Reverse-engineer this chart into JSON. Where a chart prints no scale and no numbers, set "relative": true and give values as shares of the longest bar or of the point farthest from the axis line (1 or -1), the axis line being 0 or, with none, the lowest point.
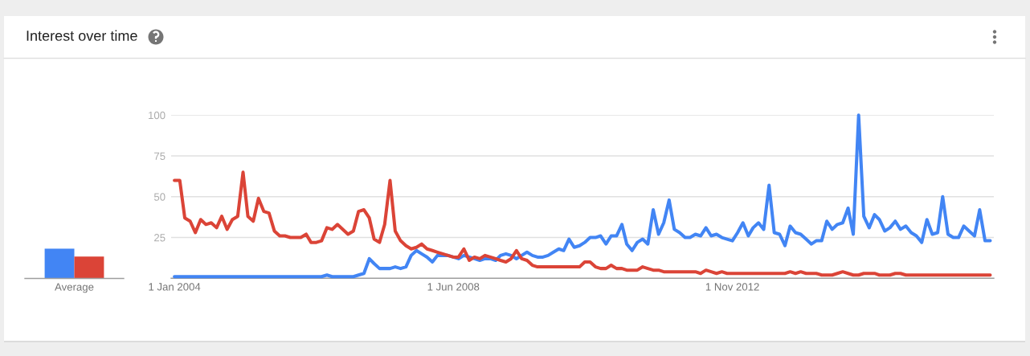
{
  "chart_data": [
    {
      "type": "bar",
      "title": "Interest over time",
      "categories": [
        "Average"
      ],
      "relative": true,
      "tick_labels": "x",
      "series": [
        {
          "color": "#4285f4",
          "values": [
            1
          ]
        },
        {
          "color": "#db4437",
          "values": [
            0.73
          ]
        }
      ]
    },
    {
      "type": "line",
      "x": [
        "2004-01",
        "2004-02",
        "2004-03",
        "2004-04",
        "2004-05",
        "2004-06",
        "2004-07",
        "2004-08",
        "2004-09",
        "2004-10",
        "2004-11",
        "2004-12",
        "2005-01",
        "2005-02",
        "2005-03",
        "2005-04",
        "2005-05",
        "2005-06",
        "2005-07",
        "2005-08",
        "2005-09",
        "2005-10",
        "2005-11",
        "2005-12",
        "2006-01",
        "2006-02",
        "2006-03",
        "2006-04",
        "2006-05",
        "2006-06",
        "2006-07",
        "2006-08",
        "2006-09",
        "2006-10",
        "2006-11",
        "2006-12",
        "2007-01",
        "2007-02",
        "2007-03",
        "2007-04",
        "2007-05",
        "2007-06",
        "2007-07",
        "2007-08",
        "2007-09",
        "2007-10",
        "2007-11",
        "2007-12",
        "2008-01",
        "2008-02",
        "2008-03",
        "2008-04",
        "2008-05",
        "2008-06",
        "2008-07",
        "2008-08",
        "2008-09",
        "2008-10",
        "2008-11",
        "2008-12",
        "2009-01",
        "2009-02",
        "2009-03",
        "2009-04",
        "2009-05",
        "2009-06",
        "2009-07",
        "2009-08",
        "2009-09",
        "2009-10",
        "2009-11",
        "2009-12",
        "2010-01",
        "2010-02",
        "2010-03",
        "2010-04",
        "2010-05",
        "2010-06",
        "2010-07",
        "2010-08",
        "2010-09",
        "2010-10",
        "2010-11",
        "2010-12",
        "2011-01",
        "2011-02",
        "2011-03",
        "2011-04",
        "2011-05",
        "2011-06",
        "2011-07",
        "2011-08",
        "2011-09",
        "2011-10",
        "2011-11",
        "2011-12",
        "2012-01",
        "2012-02",
        "2012-03",
        "2012-04",
        "2012-05",
        "2012-06",
        "2012-07",
        "2012-08",
        "2012-09",
        "2012-10",
        "2012-11",
        "2012-12",
        "2013-01",
        "2013-02",
        "2013-03",
        "2013-04",
        "2013-05",
        "2013-06",
        "2013-07",
        "2013-08",
        "2013-09",
        "2013-10",
        "2013-11",
        "2013-12",
        "2014-01",
        "2014-02",
        "2014-03",
        "2014-04",
        "2014-05",
        "2014-06",
        "2014-07",
        "2014-08",
        "2014-09",
        "2014-10",
        "2014-11",
        "2014-12",
        "2015-01",
        "2015-02",
        "2015-03",
        "2015-04",
        "2015-05",
        "2015-06",
        "2015-07",
        "2015-08",
        "2015-09",
        "2015-10",
        "2015-11",
        "2015-12",
        "2016-01",
        "2016-02",
        "2016-03",
        "2016-04",
        "2016-05",
        "2016-06",
        "2016-07",
        "2016-08",
        "2016-09",
        "2016-10",
        "2016-11",
        "2016-12"
      ],
      "xlim": [
        "2003-12-13",
        "2016-12-22"
      ],
      "xticks": [
        {
          "value": "2004-01-01",
          "label": "1 Jan 2004"
        },
        {
          "value": "2008-06-01",
          "label": "1 Jun 2008"
        },
        {
          "value": "2012-11-01",
          "label": "1 Nov 2012"
        }
      ],
      "ylim": [
        0,
        100
      ],
      "yticks": [
        25,
        50,
        75,
        100
      ],
      "grid": "y",
      "series": [
        {
          "color": "#4285f4",
          "values": [
            1,
            1,
            1,
            1,
            1,
            1,
            1,
            1,
            1,
            1,
            1,
            1,
            1,
            1,
            1,
            1,
            1,
            1,
            1,
            1,
            1,
            1,
            1,
            1,
            1,
            1,
            1,
            1,
            1,
            2,
            1,
            1,
            1,
            1,
            1,
            2,
            3,
            12,
            9,
            6,
            6,
            6,
            7,
            6,
            7,
            14,
            17,
            15,
            13,
            10,
            14,
            14,
            14,
            13,
            12,
            14,
            13,
            12,
            11,
            12,
            12,
            11,
            14,
            15,
            14,
            12,
            14,
            16,
            14,
            13,
            13,
            14,
            16,
            18,
            17,
            24,
            19,
            20,
            22,
            25,
            25,
            26,
            21,
            26,
            26,
            33,
            21,
            17,
            22,
            24,
            21,
            42,
            27,
            34,
            48,
            30,
            28,
            25,
            25,
            27,
            26,
            31,
            26,
            27,
            25,
            24,
            23,
            28,
            34,
            26,
            31,
            34,
            30,
            57,
            28,
            27,
            20,
            32,
            28,
            27,
            24,
            21,
            23,
            23,
            35,
            30,
            33,
            34,
            43,
            27,
            100,
            38,
            31,
            39,
            36,
            29,
            31,
            35,
            30,
            32,
            28,
            26,
            22,
            36,
            27,
            28,
            50,
            27,
            25,
            25,
            32,
            29,
            26,
            42,
            23,
            23
          ]
        },
        {
          "color": "#db4437",
          "values": [
            60,
            60,
            37,
            35,
            28,
            36,
            33,
            34,
            31,
            38,
            30,
            36,
            38,
            65,
            38,
            35,
            49,
            41,
            40,
            29,
            26,
            26,
            25,
            25,
            25,
            27,
            22,
            22,
            23,
            31,
            30,
            33,
            30,
            27,
            29,
            41,
            42,
            37,
            24,
            22,
            33,
            60,
            29,
            23,
            20,
            18,
            19,
            21,
            18,
            17,
            16,
            15,
            14,
            13,
            13,
            18,
            11,
            13,
            12,
            14,
            13,
            12,
            11,
            10,
            12,
            17,
            12,
            11,
            8,
            7,
            7,
            7,
            7,
            7,
            7,
            7,
            7,
            7,
            10,
            10,
            7,
            6,
            6,
            8,
            6,
            6,
            5,
            5,
            5,
            7,
            6,
            5,
            5,
            4,
            4,
            4,
            4,
            4,
            4,
            4,
            3,
            5,
            4,
            3,
            4,
            3,
            3,
            3,
            3,
            3,
            3,
            3,
            3,
            3,
            3,
            3,
            3,
            4,
            3,
            4,
            3,
            3,
            3,
            2,
            2,
            2,
            3,
            4,
            3,
            2,
            2,
            3,
            3,
            3,
            2,
            2,
            2,
            3,
            3,
            2,
            2,
            2,
            2,
            2,
            2,
            2,
            2,
            2,
            2,
            2,
            2,
            2,
            2,
            2,
            2,
            2
          ]
        }
      ]
    }
  ]
}
